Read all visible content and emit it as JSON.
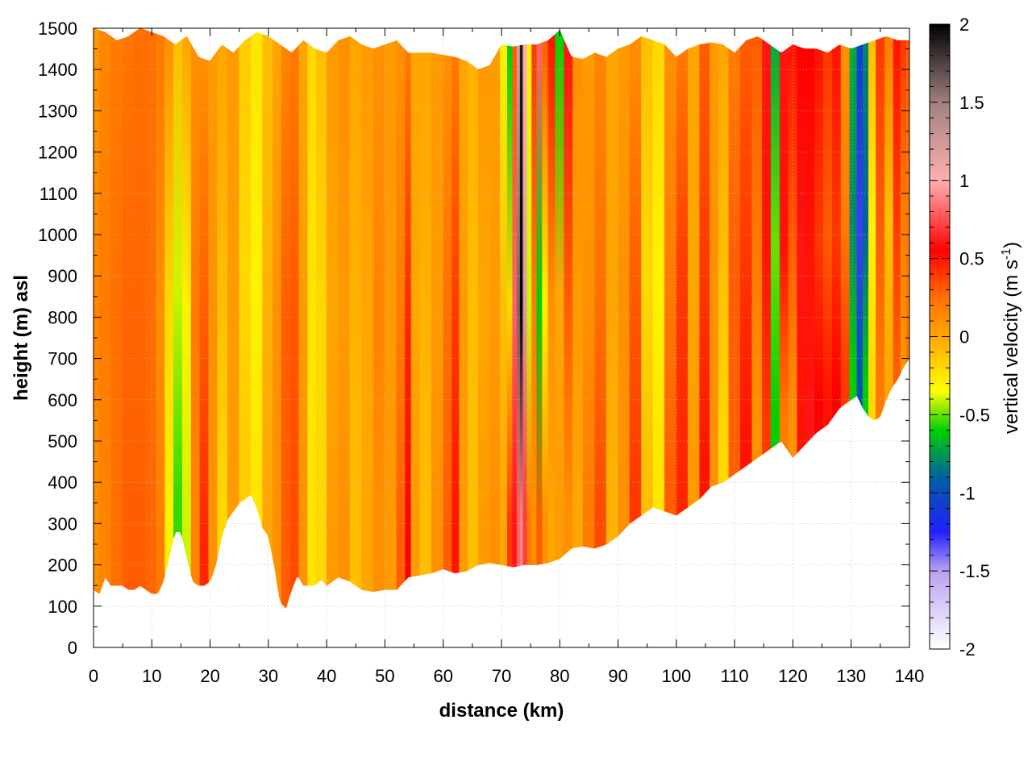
{
  "chart_data": {
    "type": "heatmap",
    "title": "",
    "xlabel": "distance (km)",
    "ylabel": "height (m) asl",
    "colorbar_label": "vertical velocity (m s-1)",
    "colorbar_label_parts": {
      "main": "vertical velocity (m s",
      "sup": "-1",
      "end": ")"
    },
    "xlim": [
      0,
      140
    ],
    "ylim": [
      0,
      1500
    ],
    "clim": [
      -2,
      2
    ],
    "x_ticks": [
      "0",
      "10",
      "20",
      "30",
      "40",
      "50",
      "60",
      "70",
      "80",
      "90",
      "100",
      "110",
      "120",
      "130",
      "140"
    ],
    "y_ticks": [
      "0",
      "100",
      "200",
      "300",
      "400",
      "500",
      "600",
      "700",
      "800",
      "900",
      "1000",
      "1100",
      "1200",
      "1300",
      "1400",
      "1500"
    ],
    "colorbar_ticks": [
      "2",
      "1.5",
      "1",
      "0.5",
      "0",
      "-0.5",
      "-1",
      "-1.5",
      "-2"
    ],
    "grid": true,
    "colorscale": [
      {
        "v": -2.0,
        "color": "#ffffff"
      },
      {
        "v": -1.5,
        "color": "#b9a0f0"
      },
      {
        "v": -1.25,
        "color": "#2020ff"
      },
      {
        "v": -0.9,
        "color": "#0060a0"
      },
      {
        "v": -0.6,
        "color": "#00d000"
      },
      {
        "v": -0.35,
        "color": "#ffff00"
      },
      {
        "v": 0.0,
        "color": "#ffa500"
      },
      {
        "v": 0.25,
        "color": "#ff7000"
      },
      {
        "v": 0.55,
        "color": "#ff0000"
      },
      {
        "v": 1.0,
        "color": "#ffb0b0"
      },
      {
        "v": 1.5,
        "color": "#a08080"
      },
      {
        "v": 2.0,
        "color": "#000000"
      }
    ],
    "terrain": {
      "x": [
        0,
        1,
        2,
        3,
        4,
        5,
        6,
        7,
        8,
        9,
        10,
        11,
        12,
        13,
        14,
        15,
        16,
        17,
        18,
        19,
        20,
        21,
        22,
        23,
        24,
        25,
        26,
        27,
        28,
        29,
        30,
        31,
        32,
        33,
        34,
        35,
        36,
        37,
        38,
        39,
        40,
        42,
        44,
        46,
        48,
        50,
        52,
        54,
        56,
        58,
        60,
        62,
        64,
        66,
        68,
        70,
        72,
        74,
        76,
        78,
        80,
        82,
        84,
        86,
        88,
        90,
        92,
        94,
        96,
        98,
        100,
        102,
        104,
        106,
        108,
        110,
        112,
        114,
        116,
        118,
        120,
        122,
        124,
        126,
        128,
        130,
        131,
        132,
        133,
        134,
        135,
        136,
        137,
        138,
        139,
        140
      ],
      "height": [
        140,
        130,
        170,
        150,
        150,
        150,
        140,
        140,
        150,
        140,
        130,
        130,
        160,
        220,
        280,
        280,
        220,
        160,
        150,
        150,
        160,
        200,
        270,
        310,
        330,
        350,
        360,
        370,
        340,
        290,
        270,
        200,
        110,
        95,
        140,
        175,
        150,
        150,
        150,
        165,
        150,
        170,
        160,
        140,
        135,
        140,
        140,
        170,
        175,
        180,
        190,
        180,
        185,
        200,
        205,
        200,
        195,
        200,
        200,
        205,
        215,
        240,
        245,
        240,
        250,
        270,
        300,
        320,
        340,
        330,
        320,
        340,
        360,
        390,
        400,
        420,
        440,
        460,
        480,
        500,
        460,
        490,
        520,
        540,
        580,
        600,
        610,
        580,
        560,
        550,
        560,
        600,
        630,
        650,
        680,
        700
      ]
    },
    "top": {
      "x": [
        0,
        2,
        4,
        6,
        8,
        10,
        12,
        14,
        16,
        18,
        20,
        22,
        24,
        26,
        28,
        30,
        32,
        34,
        36,
        38,
        40,
        42,
        44,
        46,
        48,
        50,
        52,
        54,
        56,
        58,
        60,
        62,
        64,
        66,
        68,
        70,
        72,
        74,
        76,
        78,
        80,
        82,
        84,
        86,
        88,
        90,
        92,
        94,
        96,
        98,
        100,
        102,
        104,
        106,
        108,
        110,
        112,
        114,
        116,
        118,
        120,
        122,
        124,
        126,
        128,
        130,
        132,
        134,
        136,
        138,
        140
      ],
      "height": [
        1500,
        1490,
        1470,
        1480,
        1500,
        1490,
        1480,
        1460,
        1480,
        1430,
        1420,
        1460,
        1440,
        1470,
        1490,
        1480,
        1460,
        1440,
        1470,
        1450,
        1440,
        1470,
        1480,
        1460,
        1450,
        1460,
        1470,
        1440,
        1440,
        1440,
        1435,
        1430,
        1420,
        1400,
        1410,
        1460,
        1455,
        1460,
        1460,
        1470,
        1495,
        1430,
        1425,
        1440,
        1430,
        1450,
        1460,
        1480,
        1470,
        1460,
        1430,
        1450,
        1460,
        1465,
        1460,
        1440,
        1470,
        1480,
        1460,
        1440,
        1460,
        1450,
        1450,
        1440,
        1460,
        1450,
        1460,
        1470,
        1480,
        1470,
        1470
      ]
    },
    "columns": [
      {
        "x": 0.0,
        "w": 0.05,
        "l": 0.1,
        "m": 0.15,
        "h": 0.05
      },
      {
        "x": 2.0,
        "w": 0.12,
        "l": 0.15,
        "m": 0.2,
        "h": 0.15
      },
      {
        "x": 4.0,
        "w": 0.2,
        "l": 0.25,
        "m": 0.25,
        "h": 0.2
      },
      {
        "x": 6.0,
        "w": 0.22,
        "l": 0.3,
        "m": 0.28,
        "h": 0.22
      },
      {
        "x": 8.0,
        "w": 0.22,
        "l": 0.3,
        "m": 0.28,
        "h": 0.25
      },
      {
        "x": 10.0,
        "w": 0.18,
        "l": 0.28,
        "m": 0.26,
        "h": 0.25
      },
      {
        "x": 11.5,
        "w": 0.12,
        "l": 0.2,
        "m": 0.1,
        "h": 0.2
      },
      {
        "x": 13.0,
        "w": 0.02,
        "l": -0.3,
        "m": -0.2,
        "h": 0.1
      },
      {
        "x": 14.5,
        "w": 0.0,
        "l": -0.55,
        "m": -0.4,
        "h": -0.1
      },
      {
        "x": 16.0,
        "w": 0.0,
        "l": -0.4,
        "m": -0.3,
        "h": 0.0
      },
      {
        "x": 17.5,
        "w": 0.08,
        "l": 0.15,
        "m": 0.2,
        "h": 0.1
      },
      {
        "x": 19.0,
        "w": 0.2,
        "l": 0.45,
        "m": 0.3,
        "h": 0.1
      },
      {
        "x": 20.5,
        "w": 0.15,
        "l": 0.1,
        "m": 0.1,
        "h": 0.05
      },
      {
        "x": 22.0,
        "w": 0.05,
        "l": -0.2,
        "m": -0.1,
        "h": 0.0
      },
      {
        "x": 24.0,
        "w": 0.0,
        "l": 0.05,
        "m": 0.05,
        "h": 0.05
      },
      {
        "x": 26.0,
        "w": 0.0,
        "l": -0.15,
        "m": -0.2,
        "h": -0.15
      },
      {
        "x": 28.0,
        "w": 0.0,
        "l": -0.25,
        "m": -0.3,
        "h": -0.25
      },
      {
        "x": 30.0,
        "w": 0.0,
        "l": 0.0,
        "m": -0.05,
        "h": -0.1
      },
      {
        "x": 31.5,
        "w": 0.05,
        "l": 0.1,
        "m": 0.1,
        "h": 0.0
      },
      {
        "x": 33.0,
        "w": 0.15,
        "l": 0.3,
        "m": 0.3,
        "h": 0.15
      },
      {
        "x": 34.5,
        "w": 0.2,
        "l": 0.35,
        "m": 0.32,
        "h": 0.2
      },
      {
        "x": 36.0,
        "w": 0.05,
        "l": 0.1,
        "m": 0.05,
        "h": 0.0
      },
      {
        "x": 37.5,
        "w": 0.0,
        "l": -0.25,
        "m": -0.25,
        "h": -0.2
      },
      {
        "x": 39.0,
        "w": 0.0,
        "l": -0.2,
        "m": -0.2,
        "h": -0.1
      },
      {
        "x": 41.0,
        "w": 0.0,
        "l": 0.05,
        "m": 0.0,
        "h": 0.05
      },
      {
        "x": 43.0,
        "w": 0.0,
        "l": 0.1,
        "m": 0.05,
        "h": 0.1
      },
      {
        "x": 45.0,
        "w": 0.0,
        "l": -0.1,
        "m": -0.05,
        "h": 0.0
      },
      {
        "x": 47.0,
        "w": 0.0,
        "l": 0.0,
        "m": 0.0,
        "h": 0.05
      },
      {
        "x": 49.0,
        "w": 0.0,
        "l": 0.1,
        "m": 0.15,
        "h": 0.1
      },
      {
        "x": 51.0,
        "w": 0.0,
        "l": 0.05,
        "m": 0.05,
        "h": 0.05
      },
      {
        "x": 53.0,
        "w": 0.0,
        "l": 0.3,
        "m": 0.2,
        "h": 0.1
      },
      {
        "x": 54.0,
        "w": 0.0,
        "l": 0.55,
        "m": 0.45,
        "h": 0.2
      },
      {
        "x": 55.0,
        "w": 0.0,
        "l": 0.05,
        "m": 0.0,
        "h": 0.0
      },
      {
        "x": 57.0,
        "w": 0.0,
        "l": -0.1,
        "m": -0.05,
        "h": 0.0
      },
      {
        "x": 59.0,
        "w": 0.0,
        "l": 0.1,
        "m": 0.05,
        "h": 0.05
      },
      {
        "x": 61.0,
        "w": 0.0,
        "l": 0.3,
        "m": 0.25,
        "h": 0.1
      },
      {
        "x": 62.0,
        "w": 0.0,
        "l": 0.5,
        "m": 0.4,
        "h": 0.2
      },
      {
        "x": 63.5,
        "w": 0.0,
        "l": 0.05,
        "m": 0.05,
        "h": 0.0
      },
      {
        "x": 65.0,
        "w": 0.0,
        "l": -0.1,
        "m": -0.1,
        "h": -0.05
      },
      {
        "x": 67.0,
        "w": 0.0,
        "l": 0.05,
        "m": 0.0,
        "h": 0.05
      },
      {
        "x": 69.0,
        "w": 0.0,
        "l": 0.1,
        "m": 0.05,
        "h": 0.05
      },
      {
        "x": 70.5,
        "w": 0.0,
        "l": 0.0,
        "m": -0.1,
        "h": -0.3
      },
      {
        "x": 71.5,
        "w": 0.0,
        "l": 0.4,
        "m": -0.2,
        "h": -0.6
      },
      {
        "x": 72.3,
        "w": 0.0,
        "l": 0.6,
        "m": 0.8,
        "h": 0.3
      },
      {
        "x": 73.0,
        "w": 0.0,
        "l": 0.8,
        "m": 1.6,
        "h": 1.2
      },
      {
        "x": 73.4,
        "w": 0.0,
        "l": 0.9,
        "m": 2.0,
        "h": 1.9
      },
      {
        "x": 74.0,
        "w": 0.0,
        "l": 0.7,
        "m": 1.2,
        "h": 1.0
      },
      {
        "x": 74.8,
        "w": 0.0,
        "l": 0.2,
        "m": -0.4,
        "h": -0.3
      },
      {
        "x": 75.6,
        "w": 0.0,
        "l": 0.1,
        "m": 0.2,
        "h": 0.4
      },
      {
        "x": 76.5,
        "w": 0.0,
        "l": 0.3,
        "m": -0.6,
        "h": 0.8
      },
      {
        "x": 77.5,
        "w": 0.0,
        "l": 0.1,
        "m": -0.3,
        "h": 0.3
      },
      {
        "x": 78.5,
        "w": 0.0,
        "l": 0.0,
        "m": 0.1,
        "h": 0.5
      },
      {
        "x": 80.0,
        "w": 0.0,
        "l": 0.05,
        "m": 0.0,
        "h": -0.6
      },
      {
        "x": 81.5,
        "w": 0.0,
        "l": 0.1,
        "m": 0.3,
        "h": 0.6
      },
      {
        "x": 83.0,
        "w": 0.0,
        "l": 0.0,
        "m": 0.05,
        "h": 0.1
      },
      {
        "x": 85.0,
        "w": 0.0,
        "l": 0.2,
        "m": 0.1,
        "h": 0.05
      },
      {
        "x": 87.0,
        "w": 0.0,
        "l": 0.35,
        "m": 0.25,
        "h": 0.15
      },
      {
        "x": 89.0,
        "w": 0.0,
        "l": -0.05,
        "m": 0.0,
        "h": 0.0
      },
      {
        "x": 91.0,
        "w": 0.0,
        "l": 0.1,
        "m": 0.1,
        "h": 0.05
      },
      {
        "x": 93.0,
        "w": 0.0,
        "l": 0.4,
        "m": 0.3,
        "h": 0.1
      },
      {
        "x": 95.0,
        "w": 0.0,
        "l": -0.1,
        "m": -0.2,
        "h": -0.1
      },
      {
        "x": 97.0,
        "w": 0.0,
        "l": -0.25,
        "m": -0.3,
        "h": -0.2
      },
      {
        "x": 99.0,
        "w": 0.0,
        "l": 0.3,
        "m": 0.2,
        "h": 0.1
      },
      {
        "x": 101.0,
        "w": 0.0,
        "l": 0.45,
        "m": 0.4,
        "h": 0.2
      },
      {
        "x": 103.0,
        "w": 0.0,
        "l": 0.05,
        "m": 0.0,
        "h": 0.0
      },
      {
        "x": 105.0,
        "w": 0.0,
        "l": 0.5,
        "m": 0.4,
        "h": 0.3
      },
      {
        "x": 106.5,
        "w": 0.0,
        "l": 0.1,
        "m": 0.1,
        "h": 0.05
      },
      {
        "x": 108.0,
        "w": 0.0,
        "l": -0.2,
        "m": -0.1,
        "h": 0.0
      },
      {
        "x": 110.0,
        "w": 0.0,
        "l": 0.3,
        "m": 0.3,
        "h": 0.2
      },
      {
        "x": 112.0,
        "w": 0.0,
        "l": 0.5,
        "m": 0.4,
        "h": 0.3
      },
      {
        "x": 114.0,
        "w": 0.0,
        "l": 0.1,
        "m": 0.2,
        "h": 0.3
      },
      {
        "x": 115.5,
        "w": 0.0,
        "l": 0.4,
        "m": 0.5,
        "h": 0.6
      },
      {
        "x": 117.0,
        "w": 0.0,
        "l": -0.6,
        "m": -0.5,
        "h": -0.7
      },
      {
        "x": 118.5,
        "w": 0.0,
        "l": 0.2,
        "m": 0.5,
        "h": 0.6
      },
      {
        "x": 120.0,
        "w": 0.0,
        "l": 0.1,
        "m": 0.3,
        "h": 0.5
      },
      {
        "x": 121.5,
        "w": 0.0,
        "l": 0.5,
        "m": 0.6,
        "h": 0.55
      },
      {
        "x": 123.0,
        "w": 0.0,
        "l": 0.6,
        "m": 0.5,
        "h": 0.55
      },
      {
        "x": 124.5,
        "w": 0.0,
        "l": 0.55,
        "m": 0.4,
        "h": 0.5
      },
      {
        "x": 126.0,
        "w": 0.0,
        "l": 0.5,
        "m": 0.3,
        "h": 0.4
      },
      {
        "x": 127.5,
        "w": 0.0,
        "l": 0.55,
        "m": 0.4,
        "h": 0.5
      },
      {
        "x": 129.0,
        "w": 0.0,
        "l": 0.4,
        "m": 0.2,
        "h": 0.1
      },
      {
        "x": 130.5,
        "w": 0.0,
        "l": -0.6,
        "m": -0.8,
        "h": -0.7
      },
      {
        "x": 131.5,
        "w": 0.0,
        "l": -1.0,
        "m": -1.3,
        "h": -1.1
      },
      {
        "x": 132.5,
        "w": 0.0,
        "l": -0.6,
        "m": -0.9,
        "h": -0.8
      },
      {
        "x": 133.5,
        "w": 0.0,
        "l": -0.2,
        "m": -0.3,
        "h": -0.1
      },
      {
        "x": 135.0,
        "w": 0.0,
        "l": 0.2,
        "m": 0.3,
        "h": 0.4
      },
      {
        "x": 136.5,
        "w": 0.0,
        "l": 0.0,
        "m": -0.1,
        "h": 0.2
      },
      {
        "x": 138.0,
        "w": 0.0,
        "l": 0.3,
        "m": 0.4,
        "h": 0.5
      },
      {
        "x": 139.0,
        "w": 0.0,
        "l": 0.1,
        "m": 0.2,
        "h": 0.4
      },
      {
        "x": 140.0,
        "w": 0.0,
        "l": 0.2,
        "m": 0.2,
        "h": 0.3
      }
    ]
  }
}
